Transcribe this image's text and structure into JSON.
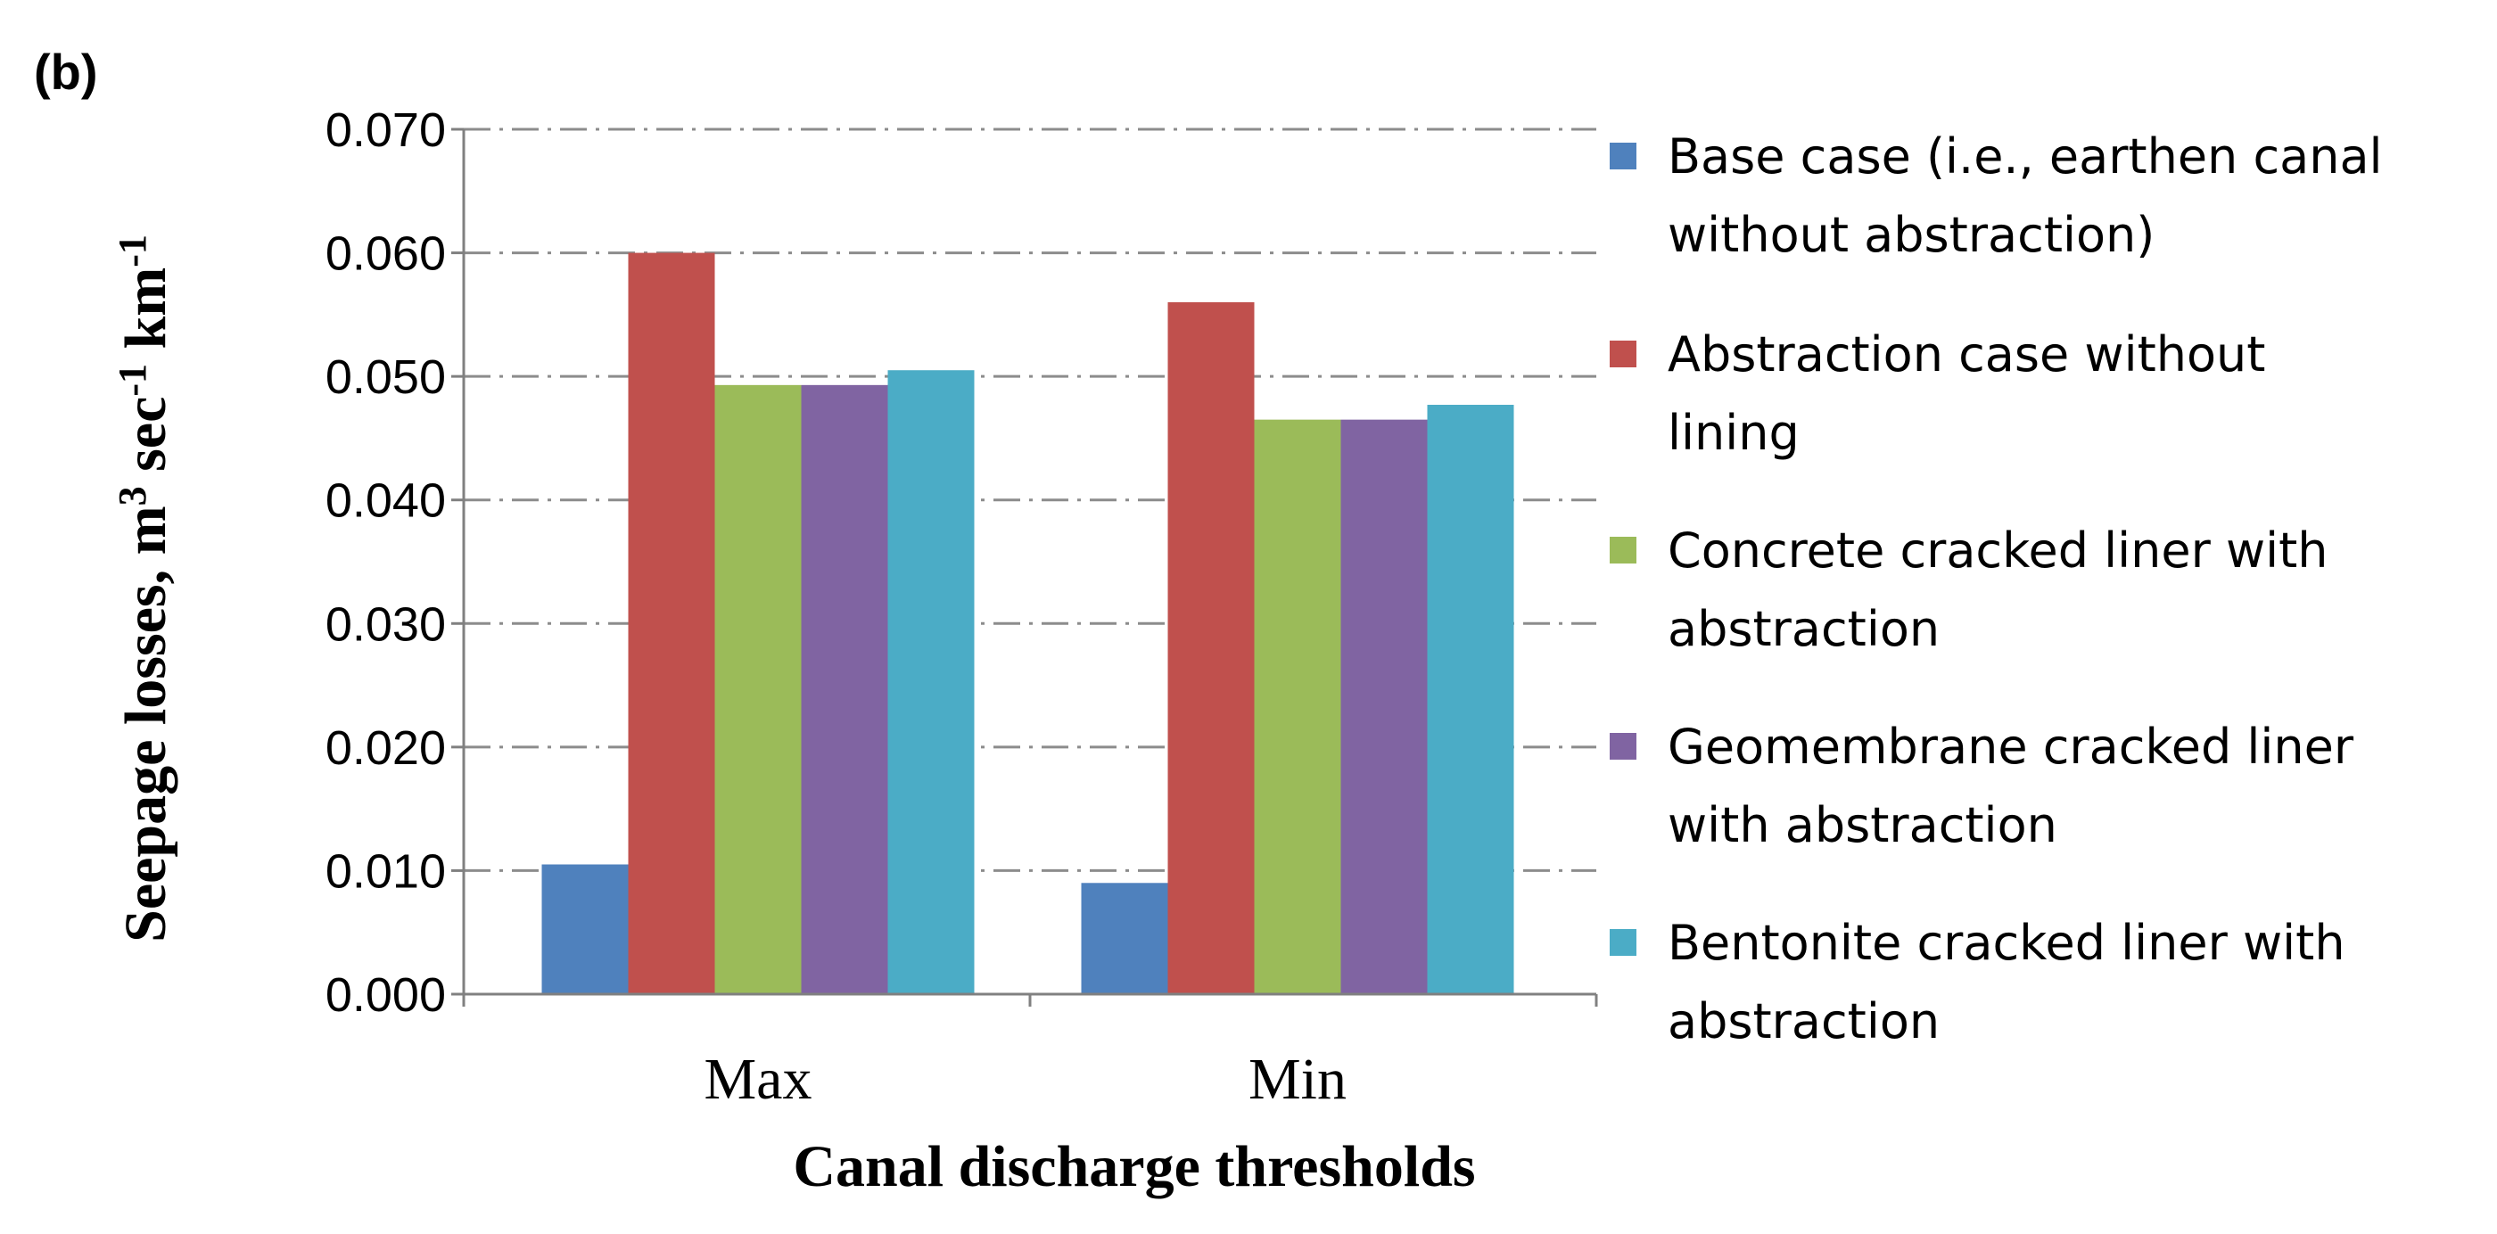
{
  "panel_label": "(b)",
  "chart_data": {
    "type": "bar",
    "title": "",
    "xlabel": "Canal discharge thresholds",
    "ylabel": {
      "prefix": "Seepage losses, m",
      "sup1": "3",
      "mid": " sec",
      "sup2": "-1",
      "mid2": " km",
      "sup3": "-1"
    },
    "ylim": [
      0,
      0.07
    ],
    "yticks": [
      "0.000",
      "0.010",
      "0.020",
      "0.030",
      "0.040",
      "0.050",
      "0.060",
      "0.070"
    ],
    "grid": "horizontal dash-dot",
    "legend_position": "right",
    "categories": [
      "Max",
      "Min"
    ],
    "series": [
      {
        "name": "Base case (i.e., earthen canal without abstraction)",
        "legend_lines": [
          "Base case (i.e., earthen canal",
          "without abstraction)"
        ],
        "color": "#4F81BD",
        "values": [
          0.0105,
          0.009
        ]
      },
      {
        "name": "Abstraction case without lining",
        "legend_lines": [
          "Abstraction case without",
          "lining"
        ],
        "color": "#C0504D",
        "values": [
          0.06,
          0.056
        ]
      },
      {
        "name": "Concrete cracked liner with abstraction",
        "legend_lines": [
          "Concrete cracked liner with",
          "abstraction"
        ],
        "color": "#9BBB59",
        "values": [
          0.0493,
          0.0465
        ]
      },
      {
        "name": "Geomembrane cracked liner with abstraction",
        "legend_lines": [
          "Geomembrane cracked liner",
          "with abstraction"
        ],
        "color": "#8064A2",
        "values": [
          0.0493,
          0.0465
        ]
      },
      {
        "name": "Bentonite cracked liner with abstraction",
        "legend_lines": [
          "Bentonite cracked liner with",
          "abstraction"
        ],
        "color": "#4BACC6",
        "values": [
          0.0505,
          0.0477
        ]
      }
    ]
  }
}
